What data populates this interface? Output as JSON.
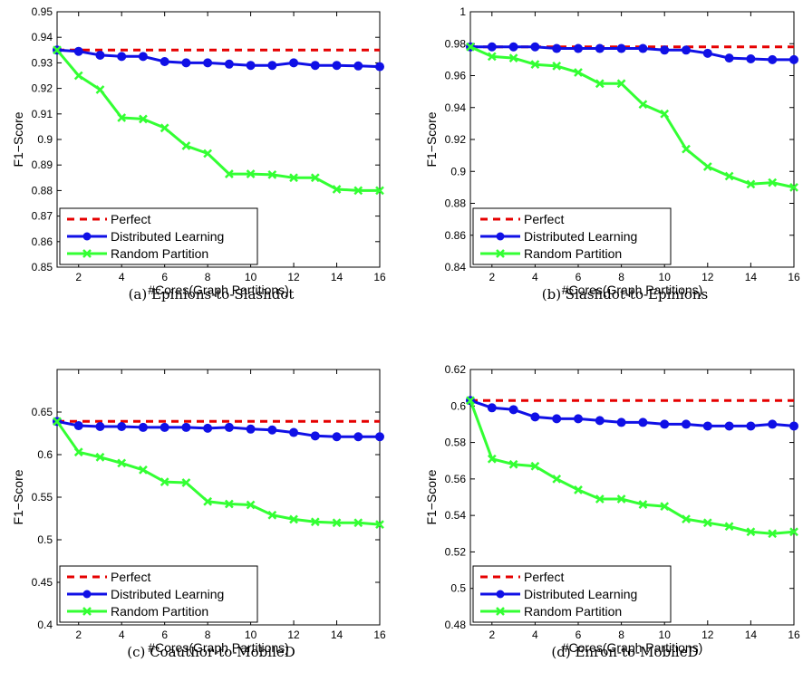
{
  "chart_data": [
    {
      "type": "line",
      "caption": "(a) Epinions-to-Slashdot",
      "xlabel": "#Cores(Graph Partitions)",
      "ylabel": "F1−Score",
      "xlim": [
        1,
        16
      ],
      "ylim": [
        0.85,
        0.95
      ],
      "xticks": [
        2,
        4,
        6,
        8,
        10,
        12,
        14,
        16
      ],
      "yticks": [
        "0.85",
        "0.86",
        "0.87",
        "0.88",
        "0.89",
        "0.9",
        "0.91",
        "0.92",
        "0.93",
        "0.94",
        "0.95"
      ],
      "legend": "bottom-left",
      "x": [
        1,
        2,
        3,
        4,
        5,
        6,
        7,
        8,
        9,
        10,
        11,
        12,
        13,
        14,
        15,
        16
      ],
      "series": [
        {
          "name": "Perfect",
          "color": "#e60000",
          "style": "dashed",
          "marker": "none",
          "values": [
            0.935,
            0.935,
            0.935,
            0.935,
            0.935,
            0.935,
            0.935,
            0.935,
            0.935,
            0.935,
            0.935,
            0.935,
            0.935,
            0.935,
            0.935,
            0.935
          ]
        },
        {
          "name": "Distributed Learning",
          "color": "#1010e6",
          "style": "solid",
          "marker": "circle",
          "values": [
            0.935,
            0.9345,
            0.933,
            0.9325,
            0.9325,
            0.9305,
            0.93,
            0.93,
            0.9295,
            0.929,
            0.929,
            0.93,
            0.929,
            0.929,
            0.9288,
            0.9285
          ]
        },
        {
          "name": "Random Partition",
          "color": "#33ff33",
          "style": "solid",
          "marker": "x",
          "values": [
            0.935,
            0.925,
            0.9195,
            0.9085,
            0.908,
            0.9045,
            0.8975,
            0.8945,
            0.8865,
            0.8865,
            0.8862,
            0.885,
            0.885,
            0.8805,
            0.88,
            0.88
          ]
        }
      ]
    },
    {
      "type": "line",
      "caption": "(b) Slashdot-to-Epinions",
      "xlabel": "#Cores(Graph Partitions)",
      "ylabel": "F1−Score",
      "xlim": [
        1,
        16
      ],
      "ylim": [
        0.84,
        1.0
      ],
      "xticks": [
        2,
        4,
        6,
        8,
        10,
        12,
        14,
        16
      ],
      "yticks": [
        "0.84",
        "0.86",
        "0.88",
        "0.9",
        "0.92",
        "0.94",
        "0.96",
        "0.98",
        "1"
      ],
      "legend": "bottom-left",
      "x": [
        1,
        2,
        3,
        4,
        5,
        6,
        7,
        8,
        9,
        10,
        11,
        12,
        13,
        14,
        15,
        16
      ],
      "series": [
        {
          "name": "Perfect",
          "color": "#e60000",
          "style": "dashed",
          "marker": "none",
          "values": [
            0.978,
            0.978,
            0.978,
            0.978,
            0.978,
            0.978,
            0.978,
            0.978,
            0.978,
            0.978,
            0.978,
            0.978,
            0.978,
            0.978,
            0.978,
            0.978
          ]
        },
        {
          "name": "Distributed Learning",
          "color": "#1010e6",
          "style": "solid",
          "marker": "circle",
          "values": [
            0.978,
            0.978,
            0.978,
            0.978,
            0.977,
            0.977,
            0.977,
            0.977,
            0.977,
            0.976,
            0.976,
            0.974,
            0.971,
            0.9705,
            0.97,
            0.97
          ]
        },
        {
          "name": "Random Partition",
          "color": "#33ff33",
          "style": "solid",
          "marker": "x",
          "values": [
            0.978,
            0.972,
            0.971,
            0.967,
            0.966,
            0.962,
            0.955,
            0.955,
            0.942,
            0.936,
            0.914,
            0.903,
            0.897,
            0.892,
            0.893,
            0.89
          ]
        }
      ]
    },
    {
      "type": "line",
      "caption": "(c) Coauthor-to-MobileD",
      "xlabel": "#Cores(Graph Partitions)",
      "ylabel": "F1−Score",
      "xlim": [
        1,
        16
      ],
      "ylim": [
        0.4,
        0.7
      ],
      "xticks": [
        2,
        4,
        6,
        8,
        10,
        12,
        14,
        16
      ],
      "yticks": [
        "0.4",
        "0.45",
        "0.5",
        "0.55",
        "0.6",
        "0.65"
      ],
      "legend": "bottom-left",
      "x": [
        1,
        2,
        3,
        4,
        5,
        6,
        7,
        8,
        9,
        10,
        11,
        12,
        13,
        14,
        15,
        16
      ],
      "series": [
        {
          "name": "Perfect",
          "color": "#e60000",
          "style": "dashed",
          "marker": "none",
          "values": [
            0.639,
            0.639,
            0.639,
            0.639,
            0.639,
            0.639,
            0.639,
            0.639,
            0.639,
            0.639,
            0.639,
            0.639,
            0.639,
            0.639,
            0.639,
            0.639
          ]
        },
        {
          "name": "Distributed Learning",
          "color": "#1010e6",
          "style": "solid",
          "marker": "circle",
          "values": [
            0.639,
            0.634,
            0.633,
            0.633,
            0.632,
            0.632,
            0.632,
            0.631,
            0.632,
            0.63,
            0.629,
            0.626,
            0.622,
            0.621,
            0.621,
            0.621
          ]
        },
        {
          "name": "Random Partition",
          "color": "#33ff33",
          "style": "solid",
          "marker": "x",
          "values": [
            0.639,
            0.603,
            0.597,
            0.59,
            0.582,
            0.568,
            0.567,
            0.545,
            0.542,
            0.541,
            0.529,
            0.524,
            0.521,
            0.52,
            0.52,
            0.518
          ]
        }
      ]
    },
    {
      "type": "line",
      "caption": "(d) Enron-to-MobileD",
      "xlabel": "#Cores(Graph Partitions)",
      "ylabel": "F1−Score",
      "xlim": [
        1,
        16
      ],
      "ylim": [
        0.48,
        0.62
      ],
      "xticks": [
        2,
        4,
        6,
        8,
        10,
        12,
        14,
        16
      ],
      "yticks": [
        "0.48",
        "0.5",
        "0.52",
        "0.54",
        "0.56",
        "0.58",
        "0.6",
        "0.62"
      ],
      "legend": "bottom-left",
      "x": [
        1,
        2,
        3,
        4,
        5,
        6,
        7,
        8,
        9,
        10,
        11,
        12,
        13,
        14,
        15,
        16
      ],
      "series": [
        {
          "name": "Perfect",
          "color": "#e60000",
          "style": "dashed",
          "marker": "none",
          "values": [
            0.603,
            0.603,
            0.603,
            0.603,
            0.603,
            0.603,
            0.603,
            0.603,
            0.603,
            0.603,
            0.603,
            0.603,
            0.603,
            0.603,
            0.603,
            0.603
          ]
        },
        {
          "name": "Distributed Learning",
          "color": "#1010e6",
          "style": "solid",
          "marker": "circle",
          "values": [
            0.603,
            0.599,
            0.598,
            0.594,
            0.593,
            0.593,
            0.592,
            0.591,
            0.591,
            0.59,
            0.59,
            0.589,
            0.589,
            0.589,
            0.59,
            0.589
          ]
        },
        {
          "name": "Random Partition",
          "color": "#33ff33",
          "style": "solid",
          "marker": "x",
          "values": [
            0.603,
            0.571,
            0.568,
            0.567,
            0.56,
            0.554,
            0.549,
            0.549,
            0.546,
            0.545,
            0.538,
            0.536,
            0.534,
            0.531,
            0.53,
            0.531
          ]
        }
      ]
    }
  ]
}
